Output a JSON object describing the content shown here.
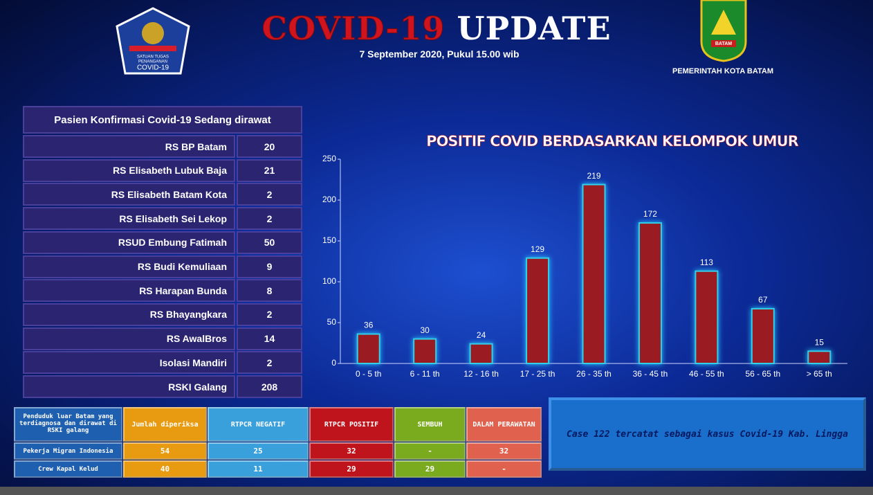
{
  "header": {
    "title_red": "COVID-19",
    "title_white": "UPDATE",
    "date": "7 September 2020, Pukul  15.00 wib",
    "logo_left": [
      "SATUAN TUGAS",
      "PENANGANAN",
      "COVID-19"
    ],
    "logo_right": "BATAM",
    "right_caption": "PEMERINTAH  KOTA BATAM"
  },
  "hospitals": {
    "title": "Pasien Konfirmasi  Covid-19 Sedang  dirawat",
    "rows": [
      [
        "RS BP Batam",
        20
      ],
      [
        "RS Elisabeth Lubuk Baja",
        21
      ],
      [
        "RS Elisabeth Batam Kota",
        2
      ],
      [
        "RS Elisabeth Sei Lekop",
        2
      ],
      [
        "RSUD Embung Fatimah",
        50
      ],
      [
        "RS Budi Kemuliaan",
        9
      ],
      [
        "RS Harapan Bunda",
        8
      ],
      [
        "RS Bhayangkara",
        2
      ],
      [
        "RS AwalBros",
        14
      ],
      [
        "Isolasi Mandiri",
        2
      ],
      [
        "RSKI Galang",
        208
      ]
    ]
  },
  "chart_data": {
    "type": "bar",
    "title": "POSITIF COVID BERDASARKAN KELOMPOK UMUR",
    "categories": [
      "0 - 5 th",
      "6 - 11 th",
      "12 - 16 th",
      "17 - 25 th",
      "26 - 35 th",
      "36 - 45 th",
      "46 - 55 th",
      "56 - 65 th",
      "> 65 th"
    ],
    "values": [
      36,
      30,
      24,
      129,
      219,
      172,
      113,
      67,
      15
    ],
    "color": "#9b1b22",
    "ylim": [
      0,
      250
    ],
    "yticks": [
      0,
      50,
      100,
      150,
      200,
      250
    ]
  },
  "rski": {
    "columns": [
      "Penduduk luar Batam yang terdiagnosa dan dirawat di RSKI galang",
      "Jumlah diperiksa",
      "RTPCR NEGATIF",
      "RTPCR POSITIF",
      "SEMBUH",
      "DALAM PERAWATAN"
    ],
    "rows": [
      [
        "Pekerja Migran Indonesia",
        54,
        25,
        32,
        "-",
        32
      ],
      [
        "Crew Kapal Kelud",
        40,
        11,
        29,
        29,
        "-"
      ]
    ]
  },
  "note": "Case 122 tercatat sebagai kasus Covid-19  Kab. Lingga"
}
